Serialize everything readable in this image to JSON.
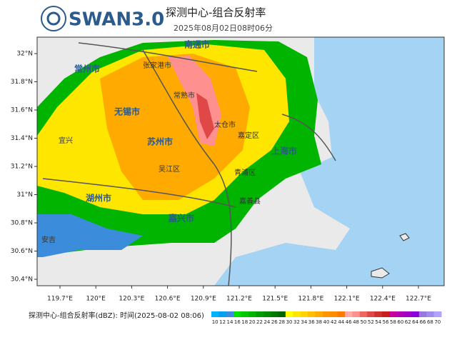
{
  "header": {
    "logo_text": "SWAN3.0",
    "title": "探测中心-组合反射率",
    "time": "2025年08月02日08时06分"
  },
  "map": {
    "lat_labels": [
      "32°N",
      "31.8°N",
      "31.6°N",
      "31.4°N",
      "31.2°N",
      "31°N",
      "30.8°N",
      "30.6°N",
      "30.4°N"
    ],
    "lon_labels": [
      "119.7°E",
      "120°E",
      "120.3°E",
      "120.6°E",
      "120.9°E",
      "121.2°E",
      "121.5°E",
      "121.8°E",
      "122.1°E",
      "122.4°E",
      "122.7°E"
    ],
    "cities": [
      "南通市",
      "张家港市",
      "常州市",
      "常熟市",
      "无锡市",
      "苏州市",
      "太仓市",
      "嘉定区",
      "上海市",
      "吴江区",
      "湖州市",
      "嘉兴市",
      "嘉善县",
      "安吉",
      "宜兴",
      "青浦区"
    ]
  },
  "legend": {
    "caption": "探测中心-组合反射率(dBZ): 时间(2025-08-02 08:06)",
    "labels": [
      10,
      12,
      14,
      16,
      18,
      20,
      22,
      24,
      26,
      28,
      30,
      32,
      34,
      36,
      38,
      40,
      42,
      44,
      46,
      48,
      50,
      52,
      54,
      56,
      58,
      60,
      62,
      64,
      66,
      68,
      70
    ],
    "colors": [
      "#00b4ff",
      "#00a0f0",
      "#3c8cdc",
      "#00e000",
      "#00c800",
      "#00b400",
      "#009c00",
      "#008c00",
      "#007800",
      "#006400",
      "#ffff00",
      "#ffe600",
      "#ffd200",
      "#ffbe00",
      "#ffaa00",
      "#ff9600",
      "#ff8c00",
      "#ff7800",
      "#ffaaaa",
      "#ff9090",
      "#f06464",
      "#e04848",
      "#d03030",
      "#c81e1e",
      "#c800a0",
      "#b400b4",
      "#a000c8",
      "#8c00dc",
      "#9678dc",
      "#a08cf0",
      "#b4a0ff"
    ]
  }
}
